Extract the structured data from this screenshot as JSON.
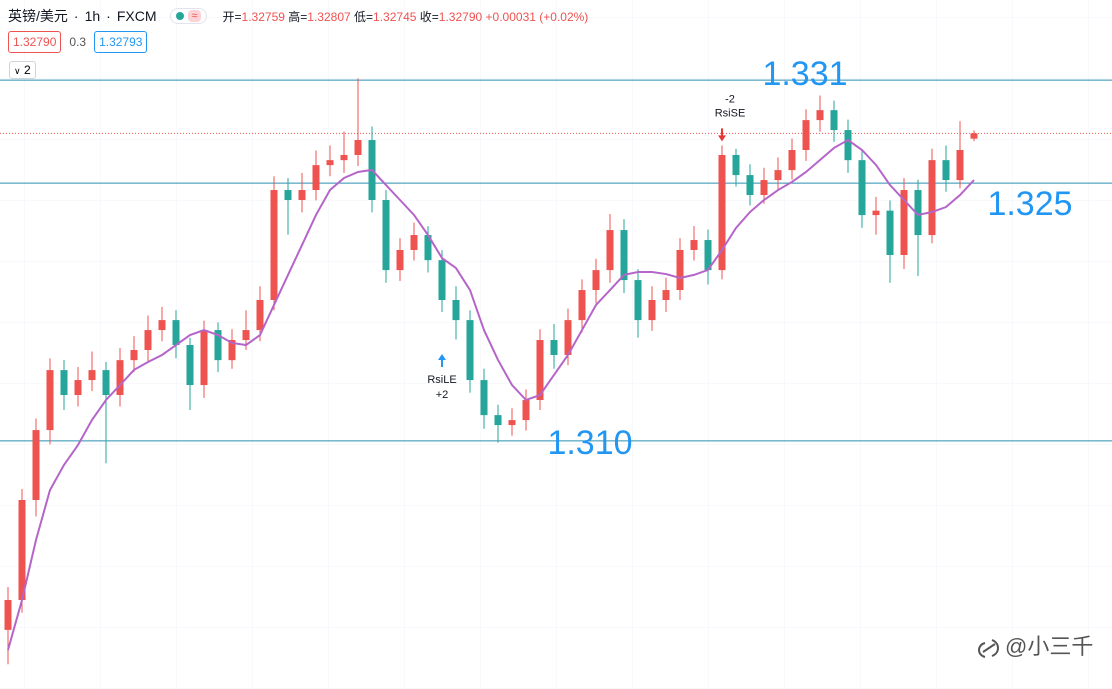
{
  "header": {
    "symbol": "英镑/美元",
    "interval": "1h",
    "source": "FXCM",
    "open_label": "开=",
    "open": "1.32759",
    "high_label": "高=",
    "high": "1.32807",
    "low_label": "低=",
    "low": "1.32745",
    "close_label": "收=",
    "close": "1.32790",
    "change": "+0.00031",
    "change_pct": "(+0.02%)",
    "bid": "1.32790",
    "spread": "0.3",
    "ask": "1.32793",
    "indicator_count": 2
  },
  "chart_data": {
    "type": "candlestick",
    "open": [
      1.299,
      1.30074,
      1.30656,
      1.31063,
      1.31412,
      1.31267,
      1.31354,
      1.31412,
      1.31267,
      1.3147,
      1.31529,
      1.31645,
      1.31703,
      1.31558,
      1.31325,
      1.31645,
      1.3147,
      1.31587,
      1.31645,
      1.3182,
      1.3246,
      1.32402,
      1.3246,
      1.32605,
      1.32634,
      1.32664,
      1.32751,
      1.32402,
      1.31994,
      1.32111,
      1.32198,
      1.32052,
      1.3182,
      1.31703,
      1.31354,
      1.3115,
      1.31092,
      1.31121,
      1.31238,
      1.31587,
      1.315,
      1.31703,
      1.31878,
      1.31994,
      1.32227,
      1.31936,
      1.31703,
      1.3182,
      1.31878,
      1.32111,
      1.32169,
      1.31994,
      1.32664,
      1.32547,
      1.32431,
      1.32518,
      1.32576,
      1.32693,
      1.32867,
      1.32925,
      1.32809,
      1.32634,
      1.32314,
      1.3234,
      1.32082,
      1.3246,
      1.32198,
      1.32634,
      1.32518,
      1.32759
    ],
    "high": [
      1.3015,
      1.3072,
      1.3113,
      1.3148,
      1.3147,
      1.3143,
      1.3152,
      1.3146,
      1.3154,
      1.3161,
      1.3173,
      1.3178,
      1.3176,
      1.316,
      1.317,
      1.3169,
      1.3165,
      1.3176,
      1.319,
      1.3254,
      1.3253,
      1.3256,
      1.3269,
      1.3272,
      1.328,
      1.3311,
      1.3283,
      1.3246,
      1.3218,
      1.3227,
      1.3225,
      1.3211,
      1.319,
      1.3176,
      1.3142,
      1.3121,
      1.3119,
      1.313,
      1.3165,
      1.3168,
      1.3177,
      1.3194,
      1.3206,
      1.3232,
      1.3229,
      1.32,
      1.319,
      1.3195,
      1.3218,
      1.3225,
      1.3223,
      1.3272,
      1.327,
      1.3261,
      1.3259,
      1.3265,
      1.3276,
      1.3293,
      1.3301,
      1.3298,
      1.3287,
      1.3269,
      1.3242,
      1.324,
      1.3253,
      1.3252,
      1.327,
      1.3272,
      1.3286,
      1.32807
    ],
    "low": [
      1.297,
      1.3,
      1.3056,
      1.3098,
      1.3118,
      1.312,
      1.3129,
      1.3087,
      1.312,
      1.314,
      1.3146,
      1.3158,
      1.3148,
      1.3118,
      1.3125,
      1.314,
      1.3142,
      1.3153,
      1.3158,
      1.3176,
      1.322,
      1.3233,
      1.324,
      1.3254,
      1.3256,
      1.326,
      1.3233,
      1.3192,
      1.3193,
      1.3205,
      1.3198,
      1.3175,
      1.3159,
      1.3128,
      1.3107,
      1.3099,
      1.3103,
      1.3106,
      1.3118,
      1.3142,
      1.3144,
      1.3163,
      1.318,
      1.3192,
      1.3186,
      1.316,
      1.3164,
      1.3175,
      1.3182,
      1.3205,
      1.3191,
      1.3194,
      1.3248,
      1.3237,
      1.3238,
      1.3246,
      1.3252,
      1.3263,
      1.328,
      1.3274,
      1.3256,
      1.3224,
      1.322,
      1.3192,
      1.32,
      1.3196,
      1.3215,
      1.3245,
      1.3247,
      1.32745
    ],
    "close": [
      1.30074,
      1.30656,
      1.31063,
      1.31412,
      1.31267,
      1.31354,
      1.31412,
      1.31267,
      1.3147,
      1.31529,
      1.31645,
      1.31703,
      1.31558,
      1.31325,
      1.31645,
      1.3147,
      1.31587,
      1.31645,
      1.3182,
      1.3246,
      1.32402,
      1.3246,
      1.32605,
      1.32634,
      1.32664,
      1.32751,
      1.32402,
      1.31994,
      1.32111,
      1.32198,
      1.32052,
      1.3182,
      1.31703,
      1.31354,
      1.3115,
      1.31092,
      1.31121,
      1.31238,
      1.31587,
      1.315,
      1.31703,
      1.31878,
      1.31994,
      1.32227,
      1.31936,
      1.31703,
      1.3182,
      1.31878,
      1.32111,
      1.32169,
      1.31994,
      1.32664,
      1.32547,
      1.32431,
      1.32518,
      1.32576,
      1.32693,
      1.32867,
      1.32925,
      1.32809,
      1.32634,
      1.32314,
      1.3234,
      1.32082,
      1.3246,
      1.32198,
      1.32634,
      1.32518,
      1.32693,
      1.3279
    ],
    "up_color": "#ef5350",
    "down_color": "#26a69a",
    "ma": {
      "color": "#b565c9",
      "values": [
        1.29783,
        1.30074,
        1.30423,
        1.30714,
        1.3086,
        1.30976,
        1.31122,
        1.31238,
        1.31325,
        1.31413,
        1.31459,
        1.315,
        1.31558,
        1.31616,
        1.31645,
        1.31616,
        1.3157,
        1.31558,
        1.31616,
        1.31791,
        1.31966,
        1.3214,
        1.32315,
        1.3246,
        1.3253,
        1.32565,
        1.32577,
        1.32489,
        1.32402,
        1.32315,
        1.32198,
        1.32064,
        1.32006,
        1.31878,
        1.31645,
        1.31471,
        1.31325,
        1.31238,
        1.31267,
        1.31384,
        1.315,
        1.31645,
        1.31791,
        1.31878,
        1.31966,
        1.31983,
        1.31983,
        1.31971,
        1.31948,
        1.31966,
        1.31995,
        1.32111,
        1.32239,
        1.32332,
        1.32402,
        1.3246,
        1.32507,
        1.32565,
        1.32635,
        1.32705,
        1.32751,
        1.32693,
        1.32606,
        1.32489,
        1.32402,
        1.32315,
        1.32332,
        1.32361,
        1.32431,
        1.32518
      ]
    },
    "ylim": [
      1.29556,
      1.33566
    ],
    "levels": [
      1.331,
      1.325,
      {
        "value": 1.31,
        "label": "1.310"
      }
    ],
    "level_color": "#2a8fb0",
    "last_price_line": true,
    "signals": [
      {
        "name": "RsiLE",
        "qty": "+2",
        "direction": "long"
      },
      {
        "name": "RsiSE",
        "qty": "-2",
        "direction": "short"
      }
    ]
  },
  "watermark": "@小三千"
}
